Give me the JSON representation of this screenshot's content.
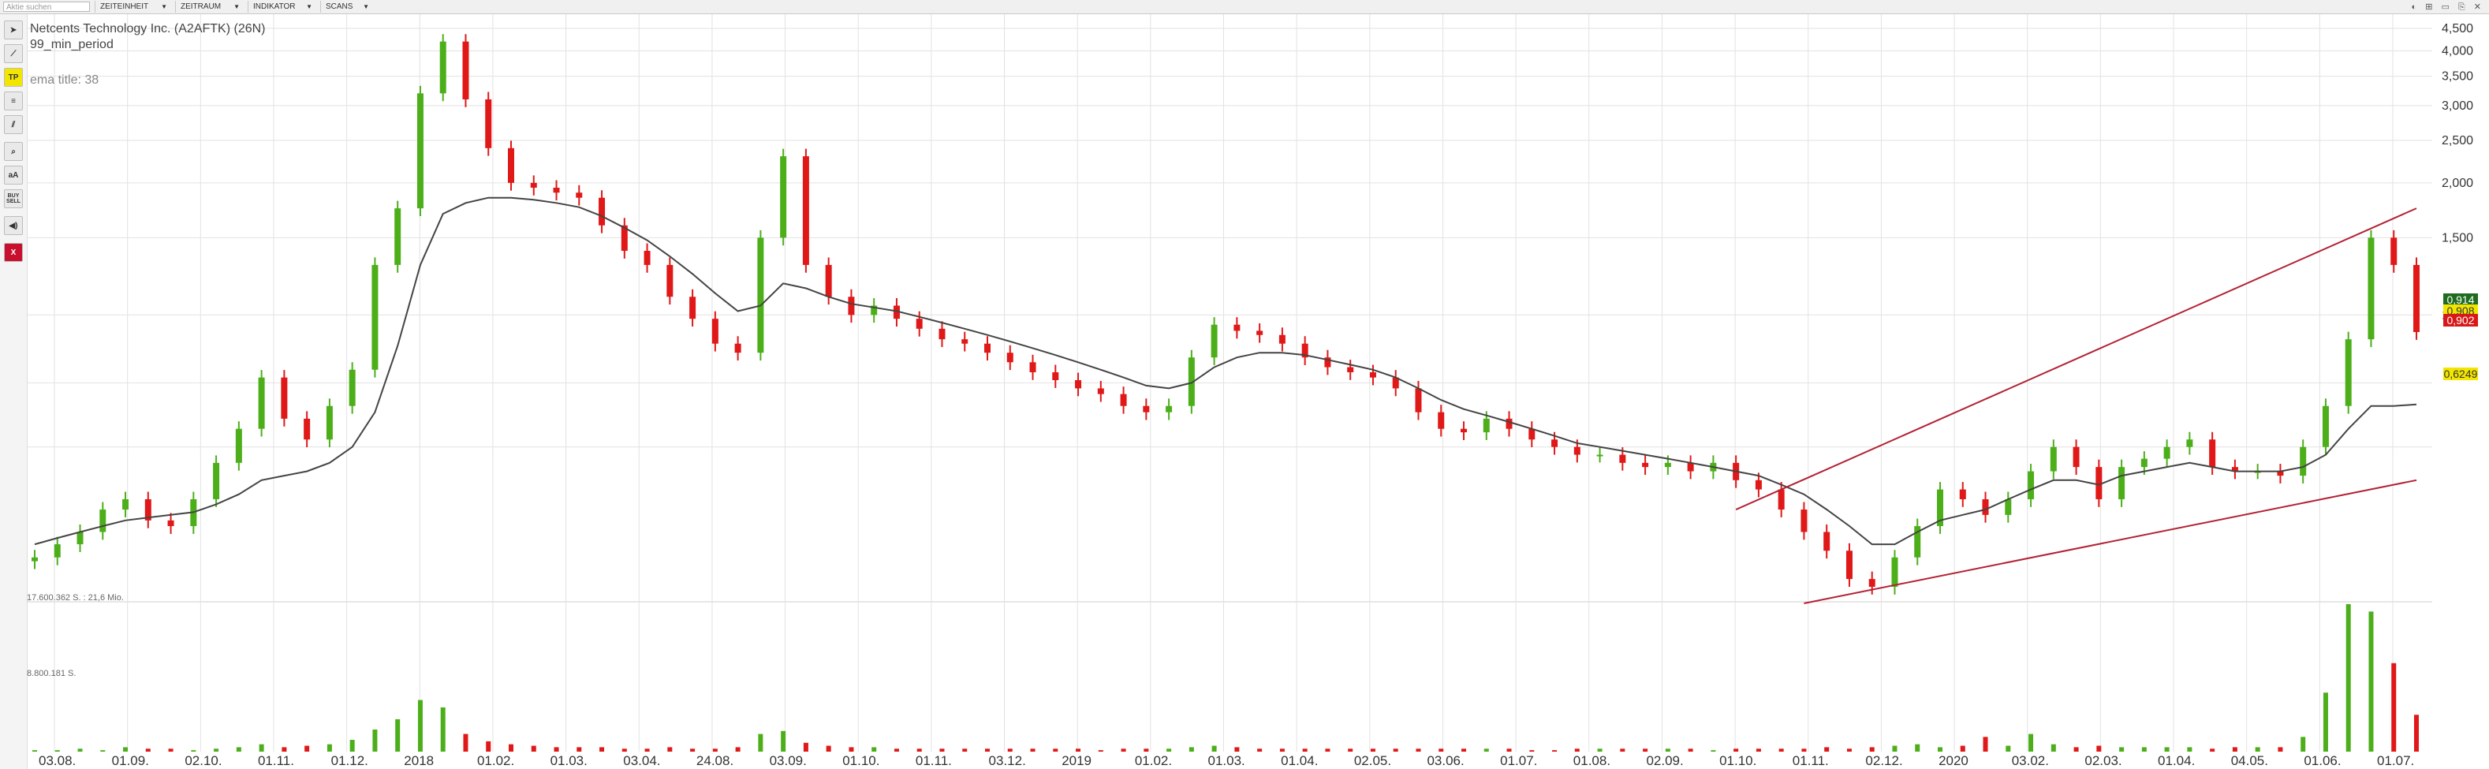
{
  "search": {
    "placeholder": "Aktie suchen"
  },
  "menus": [
    {
      "label": "ZEITEINHEIT"
    },
    {
      "label": "ZEITRAUM"
    },
    {
      "label": "INDIKATOR"
    },
    {
      "label": "SCANS"
    }
  ],
  "window_icons": "◐ ⊞ ▭ ⎘ ✕",
  "toolbar": {
    "tools": [
      {
        "name": "cursor-tool",
        "glyph": "➤"
      },
      {
        "name": "draw-line-tool",
        "glyph": "⟋"
      },
      {
        "name": "tp-tool",
        "glyph": "TP"
      },
      {
        "name": "fibonacci-tool",
        "glyph": "≡"
      },
      {
        "name": "channel-tool",
        "glyph": "⫽"
      },
      {
        "name": "zoom-tool",
        "glyph": "⌕"
      },
      {
        "name": "text-tool",
        "glyph": "aA"
      },
      {
        "name": "buy-sell-tool",
        "glyph": "BUY SELL"
      },
      {
        "name": "sound-tool",
        "glyph": "◀)"
      },
      {
        "name": "close-tool",
        "glyph": "X"
      }
    ]
  },
  "chart_info": {
    "instrument": "Netcents Technology Inc. (A2AFTK) (26N)",
    "min_period": "99_min_period",
    "ema_label": "ema title: 38",
    "volume_max_label": "17.600.362 S. : 21,6 Mio.",
    "volume_mid_label": "8.800.181 S."
  },
  "price_labels": {
    "current": "0,914",
    "second": "0,908",
    "red": "0,902",
    "ema": "0,6249"
  },
  "colors": {
    "up": "#4caf1a",
    "down": "#e01818",
    "ema": "#444444",
    "channel": "#b22234",
    "grid": "#e2e2e2"
  },
  "chart_data": {
    "type": "candlestick",
    "title": "Netcents Technology Inc. (A2AFTK) (26N)",
    "y_scale": "log",
    "y_ticks": [
      "4,500",
      "4,000",
      "3,500",
      "3,000",
      "2,500",
      "2,000",
      "1,500",
      "1,000"
    ],
    "y_tick_values": [
      4.5,
      4.0,
      3.5,
      3.0,
      2.5,
      2.0,
      1.5,
      1.0
    ],
    "x_ticks": [
      "03.08.",
      "01.09.",
      "02.10.",
      "01.11.",
      "01.12.",
      "2018",
      "01.02.",
      "01.03.",
      "03.04.",
      "24.08.",
      "03.09.",
      "01.10.",
      "01.11.",
      "03.12.",
      "2019",
      "01.02.",
      "01.03.",
      "01.04.",
      "02.05.",
      "03.06.",
      "01.07.",
      "01.08.",
      "02.09.",
      "01.10.",
      "01.11.",
      "02.12.",
      "2020",
      "03.02.",
      "02.03.",
      "01.04.",
      "04.05.",
      "01.06.",
      "01.07."
    ],
    "price_series": [
      0.28,
      0.3,
      0.32,
      0.36,
      0.38,
      0.34,
      0.33,
      0.38,
      0.46,
      0.55,
      0.72,
      0.58,
      0.52,
      0.62,
      0.75,
      1.3,
      1.75,
      3.2,
      4.2,
      3.1,
      2.4,
      2.0,
      1.95,
      1.9,
      1.85,
      1.6,
      1.4,
      1.3,
      1.1,
      0.98,
      0.86,
      0.82,
      1.5,
      2.3,
      1.3,
      1.1,
      1.0,
      1.05,
      0.98,
      0.93,
      0.88,
      0.86,
      0.82,
      0.78,
      0.74,
      0.71,
      0.68,
      0.66,
      0.62,
      0.6,
      0.62,
      0.8,
      0.95,
      0.92,
      0.9,
      0.86,
      0.8,
      0.76,
      0.74,
      0.72,
      0.68,
      0.6,
      0.55,
      0.54,
      0.58,
      0.55,
      0.52,
      0.5,
      0.48,
      0.48,
      0.46,
      0.45,
      0.46,
      0.44,
      0.46,
      0.42,
      0.4,
      0.36,
      0.32,
      0.29,
      0.25,
      0.24,
      0.28,
      0.33,
      0.4,
      0.38,
      0.35,
      0.38,
      0.44,
      0.5,
      0.45,
      0.38,
      0.45,
      0.47,
      0.5,
      0.52,
      0.45,
      0.44,
      0.44,
      0.43,
      0.5,
      0.62,
      0.88,
      1.5,
      1.3,
      0.914
    ],
    "ema_series": [
      0.3,
      0.31,
      0.32,
      0.33,
      0.34,
      0.345,
      0.35,
      0.355,
      0.37,
      0.39,
      0.42,
      0.43,
      0.44,
      0.46,
      0.5,
      0.6,
      0.85,
      1.3,
      1.7,
      1.8,
      1.85,
      1.85,
      1.83,
      1.8,
      1.76,
      1.68,
      1.58,
      1.48,
      1.36,
      1.24,
      1.12,
      1.02,
      1.05,
      1.18,
      1.15,
      1.1,
      1.06,
      1.04,
      1.02,
      0.99,
      0.96,
      0.93,
      0.9,
      0.87,
      0.84,
      0.81,
      0.78,
      0.75,
      0.72,
      0.69,
      0.68,
      0.7,
      0.76,
      0.8,
      0.82,
      0.82,
      0.81,
      0.79,
      0.77,
      0.75,
      0.72,
      0.68,
      0.64,
      0.61,
      0.59,
      0.57,
      0.55,
      0.53,
      0.51,
      0.5,
      0.49,
      0.48,
      0.47,
      0.46,
      0.45,
      0.44,
      0.43,
      0.41,
      0.39,
      0.36,
      0.33,
      0.3,
      0.3,
      0.32,
      0.34,
      0.35,
      0.36,
      0.38,
      0.4,
      0.42,
      0.42,
      0.41,
      0.43,
      0.44,
      0.45,
      0.46,
      0.45,
      0.44,
      0.44,
      0.44,
      0.45,
      0.48,
      0.55,
      0.62,
      0.62,
      0.6249
    ],
    "channel_upper": {
      "x": [
        75,
        105
      ],
      "y": [
        0.36,
        1.75
      ]
    },
    "channel_lower": {
      "x": [
        78,
        105
      ],
      "y": [
        0.22,
        0.42
      ]
    },
    "volume_ylim": [
      0,
      17600362
    ],
    "volume_series": [
      0.01,
      0.01,
      0.02,
      0.01,
      0.03,
      0.02,
      0.02,
      0.01,
      0.02,
      0.03,
      0.05,
      0.03,
      0.04,
      0.05,
      0.08,
      0.15,
      0.22,
      0.35,
      0.3,
      0.12,
      0.07,
      0.05,
      0.04,
      0.03,
      0.03,
      0.03,
      0.02,
      0.02,
      0.03,
      0.02,
      0.02,
      0.03,
      0.12,
      0.14,
      0.06,
      0.04,
      0.03,
      0.03,
      0.02,
      0.02,
      0.02,
      0.02,
      0.02,
      0.02,
      0.02,
      0.02,
      0.02,
      0.01,
      0.02,
      0.02,
      0.02,
      0.03,
      0.04,
      0.03,
      0.02,
      0.02,
      0.02,
      0.02,
      0.02,
      0.02,
      0.02,
      0.02,
      0.02,
      0.02,
      0.02,
      0.02,
      0.01,
      0.01,
      0.02,
      0.02,
      0.02,
      0.02,
      0.02,
      0.02,
      0.01,
      0.02,
      0.02,
      0.02,
      0.02,
      0.03,
      0.02,
      0.03,
      0.04,
      0.05,
      0.03,
      0.04,
      0.1,
      0.04,
      0.12,
      0.05,
      0.03,
      0.04,
      0.03,
      0.03,
      0.03,
      0.03,
      0.02,
      0.03,
      0.03,
      0.03,
      0.1,
      0.4,
      1.0,
      0.95,
      0.6,
      0.25
    ]
  }
}
